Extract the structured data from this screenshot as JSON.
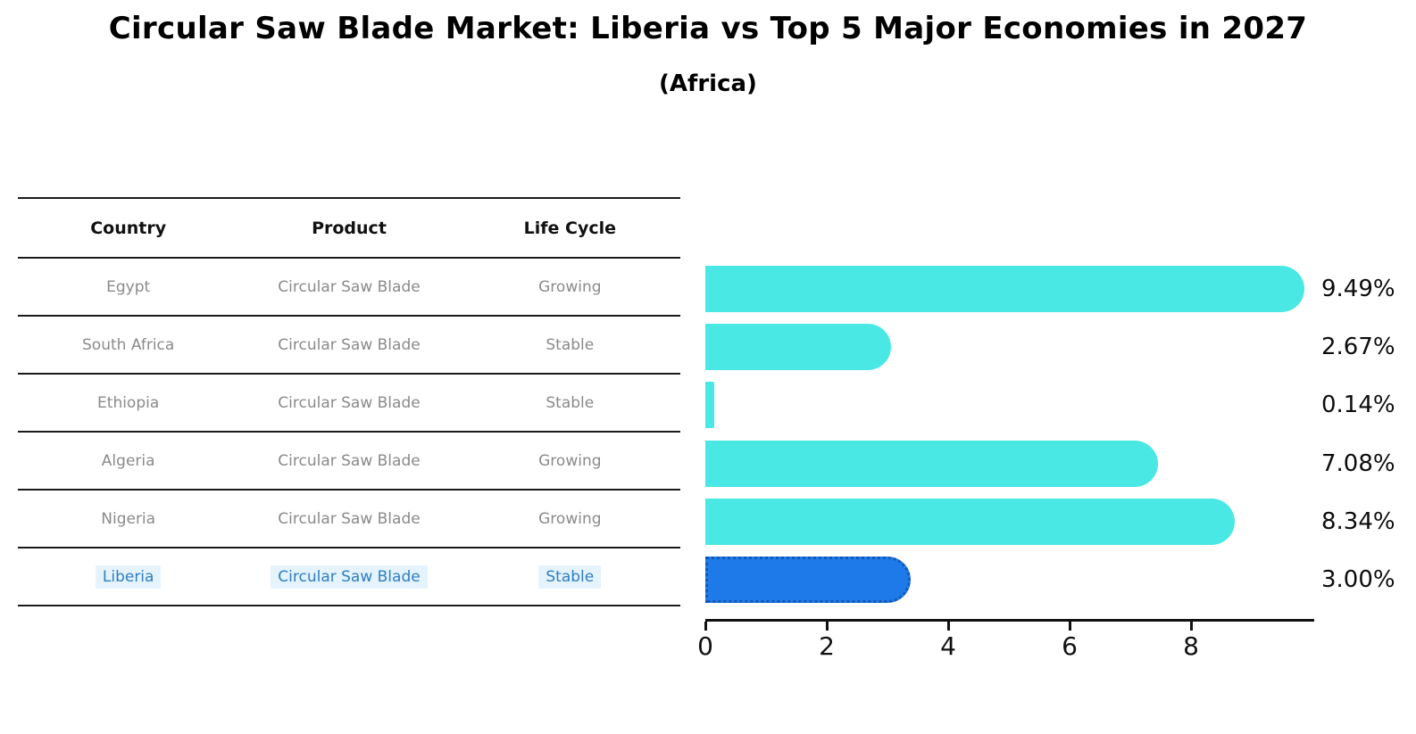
{
  "title": "Circular Saw Blade Market: Liberia vs Top 5 Major Economies in 2027",
  "subtitle": "(Africa)",
  "colors": {
    "bar_default": "#4AE8E4",
    "bar_highlight": "#1E7AE8",
    "bar_highlight_border": "#1458B8",
    "row_text": "#8A8A8A",
    "row_text_highlight": "#2E7EC1",
    "highlight_bg": "#E4F3FD",
    "header_text": "#111111",
    "line": "#1A1A1A"
  },
  "table": {
    "headers": [
      "Country",
      "Product",
      "Life Cycle"
    ],
    "rows": [
      {
        "country": "Egypt",
        "product": "Circular Saw Blade",
        "life_cycle": "Growing",
        "highlight": false
      },
      {
        "country": "South Africa",
        "product": "Circular Saw Blade",
        "life_cycle": "Stable",
        "highlight": false
      },
      {
        "country": "Ethiopia",
        "product": "Circular Saw Blade",
        "life_cycle": "Stable",
        "highlight": false
      },
      {
        "country": "Algeria",
        "product": "Circular Saw Blade",
        "life_cycle": "Growing",
        "highlight": false
      },
      {
        "country": "Nigeria",
        "product": "Circular Saw Blade",
        "life_cycle": "Growing",
        "highlight": false
      },
      {
        "country": "Liberia",
        "product": "Circular Saw Blade",
        "life_cycle": "Stable",
        "highlight": true
      }
    ]
  },
  "chart_data": {
    "type": "bar",
    "orientation": "horizontal",
    "title": "Circular Saw Blade Market: Liberia vs Top 5 Major Economies in 2027 (Africa)",
    "categories": [
      "Egypt",
      "South Africa",
      "Ethiopia",
      "Algeria",
      "Nigeria",
      "Liberia"
    ],
    "values": [
      9.49,
      2.67,
      0.14,
      7.08,
      8.34,
      3.0
    ],
    "value_labels": [
      "9.49%",
      "2.67%",
      "0.14%",
      "7.08%",
      "8.34%",
      "3.00%"
    ],
    "highlight_index": 5,
    "xlabel": "",
    "ylabel": "",
    "xlim": [
      0,
      10
    ],
    "xticks": [
      0,
      2,
      4,
      6,
      8
    ],
    "grid": false,
    "legend": null
  }
}
